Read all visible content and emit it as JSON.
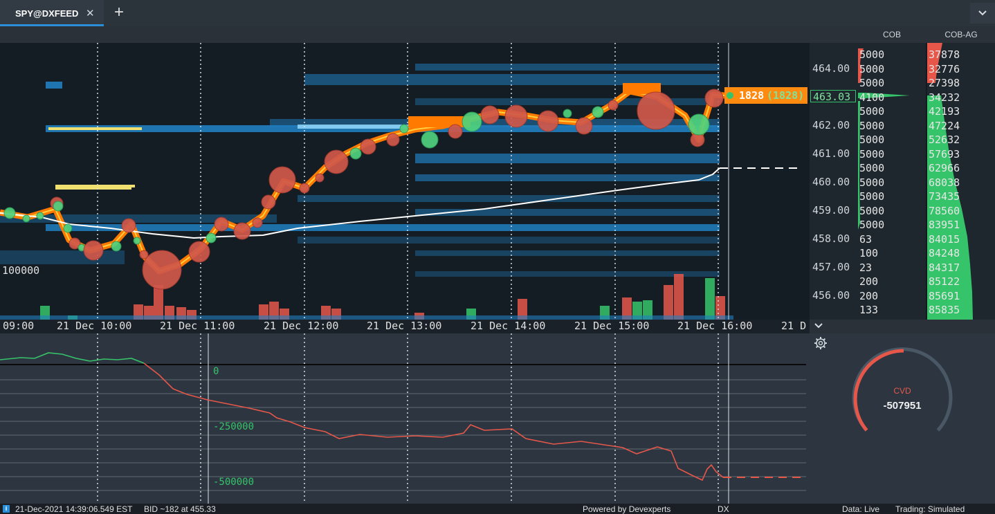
{
  "tab": {
    "title": "SPY@DXFEED",
    "close": "✕",
    "add": "+",
    "menu": "⌄"
  },
  "headers": {
    "cob": "COB",
    "cob_ag": "COB-AG"
  },
  "price_axis": [
    "464.00",
    "462.00",
    "461.00",
    "460.00",
    "459.00",
    "458.00",
    "457.00",
    "456.00"
  ],
  "current_price": "463.03",
  "last_trade": {
    "size": "1828",
    "cum": "(1828)"
  },
  "volume_label": "100000",
  "time_axis": [
    "09:00",
    "21 Dec 10:00",
    "21 Dec 11:00",
    "21 Dec 12:00",
    "21 Dec 13:00",
    "21 Dec 14:00",
    "21 Dec 15:00",
    "21 Dec 16:00",
    "21 D"
  ],
  "cob": [
    "5000",
    "5000",
    "5000",
    "4100",
    "5000",
    "5000",
    "5000",
    "5000",
    "5000",
    "5000",
    "5000",
    "5000",
    "5000",
    "63",
    "100",
    "23",
    "200",
    "200",
    "133"
  ],
  "cob_ag": [
    "37878",
    "32776",
    "27398",
    "34232",
    "42193",
    "47224",
    "52632",
    "57693",
    "62966",
    "68038",
    "73435",
    "78560",
    "83951",
    "84015",
    "84248",
    "84317",
    "85122",
    "85691",
    "85835"
  ],
  "cvd_axis": [
    "0",
    "-250000",
    "-500000"
  ],
  "gauge": {
    "label": "CVD",
    "value": "-507951"
  },
  "status": {
    "icon": "i",
    "datetime": "21-Dec-2021 14:39:06.549 EST",
    "bid": "BID ~182 at 455.33",
    "powered": "Powered by Devexperts",
    "dx": "DX",
    "data": "Data:  Live",
    "trading": "Trading:  Simulated"
  },
  "colors": {
    "accent": "#2a8fd8",
    "buy": "#36c46a",
    "sell": "#e6574a",
    "bubble_sell": "#d0584a",
    "bubble_buy": "#4fd27e",
    "heat": "#1f7fbf",
    "trail": "#ff7a00"
  }
}
